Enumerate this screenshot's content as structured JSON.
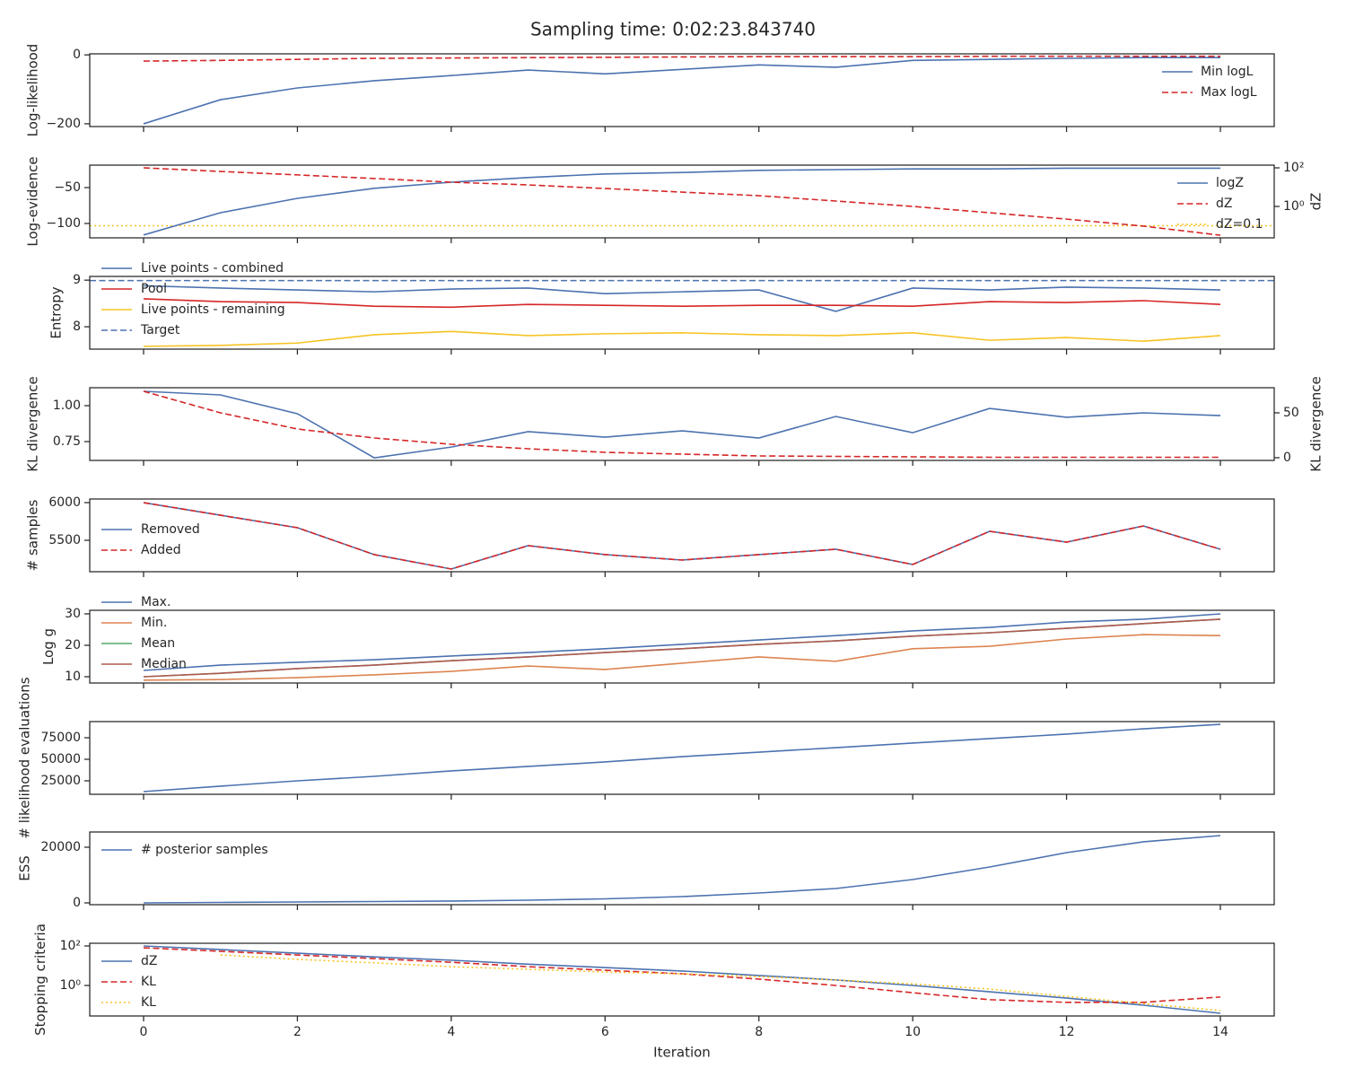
{
  "title": "Sampling time: 0:02:23.843740",
  "chart_data": [
    {
      "type": "line",
      "ylabel": "Log-likelihood",
      "x": [
        0,
        1,
        2,
        3,
        4,
        5,
        6,
        7,
        8,
        9,
        10,
        11,
        12,
        13,
        14
      ],
      "ylim": [
        -208,
        3
      ],
      "yticks": [
        {
          "value": -200,
          "label": "−200"
        },
        0
      ],
      "legend": "upper right",
      "series": [
        {
          "name": "Min logL",
          "color": "#4c72b0",
          "dash": "solid",
          "values": [
            -200,
            -130,
            -96,
            -75,
            -60,
            -44,
            -55,
            -42,
            -29,
            -36,
            -16,
            -13,
            -10,
            -8,
            -8
          ]
        },
        {
          "name": "Max logL",
          "color": "#d62728",
          "dash": "dashed",
          "values": [
            -18,
            -16,
            -13,
            -10,
            -9,
            -8,
            -7,
            -6,
            -5,
            -5,
            -5,
            -4,
            -4,
            -4,
            -4
          ]
        }
      ]
    },
    {
      "type": "line",
      "ylabel": "Log-evidence",
      "x": [
        0,
        1,
        2,
        3,
        4,
        5,
        6,
        7,
        8,
        9,
        10,
        11,
        12,
        13,
        14
      ],
      "ylim": [
        -120,
        -18.75
      ],
      "yticks": [
        {
          "value": -100,
          "label": "−100"
        },
        {
          "value": -50,
          "label": "−50"
        }
      ],
      "y2label": "dZ",
      "y2log": true,
      "y2lim": [
        0.0235,
        138
      ],
      "y2ticks": [
        {
          "value": 1,
          "label": "10⁰"
        },
        {
          "value": 100,
          "label": "10²"
        }
      ],
      "legend": "upper right",
      "series": [
        {
          "name": "logZ",
          "color": "#4c72b0",
          "dash": "solid",
          "values": [
            -116,
            -85,
            -65,
            -51,
            -42.5,
            -36,
            -31,
            -29,
            -26,
            -25,
            -24,
            -24,
            -23,
            -23,
            -23
          ]
        },
        {
          "name": "dZ",
          "color": "#d62728",
          "dash": "dashed",
          "axis": "y2",
          "values": [
            100,
            65,
            43,
            28,
            18,
            13,
            8.5,
            5.5,
            3.6,
            1.9,
            1,
            0.47,
            0.22,
            0.095,
            0.032
          ]
        }
      ],
      "hlines": [
        {
          "name": "dZ=0.1",
          "value": 0.1,
          "axis": "y2",
          "color": "#f7c325",
          "dash": "dotted"
        }
      ]
    },
    {
      "type": "line",
      "ylabel": "Entropy",
      "x": [
        0,
        1,
        2,
        3,
        4,
        5,
        6,
        7,
        8,
        9,
        10,
        11,
        12,
        13,
        14
      ],
      "ylim": [
        7.52,
        9.08
      ],
      "yticks": [
        8,
        9
      ],
      "legend": "upper left",
      "series": [
        {
          "name": "Live points - combined",
          "color": "#4c72b0",
          "dash": "solid",
          "values": [
            8.88,
            8.83,
            8.79,
            8.75,
            8.81,
            8.83,
            8.71,
            8.75,
            8.79,
            8.33,
            8.83,
            8.79,
            8.85,
            8.83,
            8.79
          ]
        },
        {
          "name": "Pool",
          "color": "#d62728",
          "dash": "solid",
          "values": [
            8.6,
            8.54,
            8.52,
            8.44,
            8.42,
            8.48,
            8.46,
            8.44,
            8.46,
            8.46,
            8.44,
            8.54,
            8.52,
            8.56,
            8.48
          ]
        },
        {
          "name": "Live points - remaining",
          "color": "#f7c325",
          "dash": "solid",
          "values": [
            7.58,
            7.6,
            7.65,
            7.83,
            7.9,
            7.81,
            7.85,
            7.87,
            7.83,
            7.81,
            7.87,
            7.71,
            7.77,
            7.69,
            7.81
          ]
        }
      ],
      "hlines": [
        {
          "name": "Target",
          "value": 8.99,
          "color": "#4c72b0",
          "dash": "dashed"
        }
      ]
    },
    {
      "type": "line",
      "ylabel": "KL divergence",
      "x": [
        0,
        1,
        2,
        3,
        4,
        5,
        6,
        7,
        8,
        9,
        10,
        11,
        12,
        13,
        14
      ],
      "ylim": [
        0.619,
        1.125
      ],
      "yticks": [
        {
          "value": 0.75,
          "label": "0.75"
        },
        {
          "value": 1,
          "label": "1.00"
        }
      ],
      "y2label": "KL divergence",
      "y2lim": [
        -3,
        78
      ],
      "y2ticks": [
        0,
        50
      ],
      "series": [
        {
          "color": "#4c72b0",
          "dash": "solid",
          "values": [
            1.1,
            1.075,
            0.944,
            0.637,
            0.712,
            0.819,
            0.781,
            0.825,
            0.775,
            0.925,
            0.812,
            0.981,
            0.919,
            0.95,
            0.931
          ]
        },
        {
          "color": "#d62728",
          "dash": "dashed",
          "axis": "y2",
          "values": [
            74,
            50,
            32,
            22,
            15,
            10,
            6,
            4,
            2,
            1.5,
            1,
            0.5,
            0.5,
            0.5,
            0.5
          ]
        }
      ]
    },
    {
      "type": "line",
      "ylabel": "# samples",
      "x": [
        0,
        1,
        2,
        3,
        4,
        5,
        6,
        7,
        8,
        9,
        10,
        11,
        12,
        13,
        14
      ],
      "ylim": [
        5083,
        6048
      ],
      "yticks": [
        5500,
        6000
      ],
      "legend": "center left",
      "series": [
        {
          "name": "Removed",
          "color": "#4c72b0",
          "dash": "solid",
          "values": [
            6000,
            5833,
            5667,
            5310,
            5119,
            5429,
            5310,
            5238,
            5310,
            5381,
            5179,
            5619,
            5476,
            5690,
            5381
          ]
        },
        {
          "name": "Added",
          "color": "#d62728",
          "dash": "dashed",
          "values": [
            6000,
            5833,
            5667,
            5310,
            5119,
            5429,
            5310,
            5238,
            5310,
            5381,
            5179,
            5619,
            5476,
            5690,
            5381
          ]
        }
      ]
    },
    {
      "type": "line",
      "ylabel": "Log g",
      "x": [
        0,
        1,
        2,
        3,
        4,
        5,
        6,
        7,
        8,
        9,
        10,
        11,
        12,
        13,
        14
      ],
      "ylim": [
        8,
        31.14
      ],
      "yticks": [
        10,
        20,
        30
      ],
      "legend": "upper left",
      "series": [
        {
          "name": "Max.",
          "color": "#4c72b0",
          "dash": "solid",
          "values": [
            12,
            13.7,
            14.6,
            15.4,
            16.6,
            17.7,
            18.9,
            20.3,
            21.7,
            23.1,
            24.6,
            25.7,
            27.4,
            28.3,
            30
          ]
        },
        {
          "name": "Min.",
          "color": "#dd8452",
          "dash": "solid",
          "values": [
            8.9,
            9.1,
            9.7,
            10.6,
            11.7,
            13.4,
            12.3,
            14.3,
            16.3,
            14.9,
            18.9,
            19.7,
            22,
            23.4,
            23.1
          ]
        },
        {
          "name": "Mean",
          "color": "#55a868",
          "dash": "solid",
          "values": [
            10,
            11.1,
            12.6,
            13.7,
            15.1,
            16.3,
            17.7,
            18.9,
            20.3,
            21.4,
            22.9,
            24,
            25.4,
            26.9,
            28.3
          ]
        },
        {
          "name": "Median",
          "color": "#b05a52",
          "dash": "solid",
          "values": [
            10,
            11.1,
            12.6,
            13.7,
            15.1,
            16.3,
            17.7,
            18.9,
            20.3,
            21.4,
            22.9,
            24,
            25.4,
            26.9,
            28.3
          ]
        }
      ]
    },
    {
      "type": "line",
      "ylabel": "# likelihood evaluations",
      "x": [
        0,
        1,
        2,
        3,
        4,
        5,
        6,
        7,
        8,
        9,
        10,
        11,
        12,
        13,
        14
      ],
      "ylim": [
        9375,
        93750
      ],
      "yticks": [
        25000,
        50000,
        75000
      ],
      "series": [
        {
          "color": "#4c72b0",
          "dash": "solid",
          "values": [
            12500,
            18800,
            25000,
            30200,
            36500,
            41700,
            46900,
            53100,
            58300,
            63500,
            68800,
            74000,
            79200,
            85400,
            90600
          ]
        }
      ]
    },
    {
      "type": "line",
      "ylabel": "ESS",
      "x": [
        0,
        1,
        2,
        3,
        4,
        5,
        6,
        7,
        8,
        9,
        10,
        11,
        12,
        13,
        14
      ],
      "ylim": [
        -645,
        25480
      ],
      "yticks": [
        0,
        20000
      ],
      "legend": "upper left",
      "series": [
        {
          "name": "# posterior samples",
          "color": "#4c72b0",
          "dash": "solid",
          "values": [
            0,
            160,
            320,
            480,
            650,
            970,
            1450,
            2260,
            3550,
            5160,
            8390,
            12900,
            18060,
            21940,
            24190
          ]
        }
      ]
    },
    {
      "type": "line",
      "ylabel": "Stopping criteria",
      "xlabel": "Iteration",
      "x": [
        0,
        1,
        2,
        3,
        4,
        5,
        6,
        7,
        8,
        9,
        10,
        11,
        12,
        13,
        14
      ],
      "xlim": [
        -0.7,
        14.7
      ],
      "xticks": [
        0,
        2,
        4,
        6,
        8,
        10,
        12,
        14
      ],
      "ylog": true,
      "ylim": [
        0.0285,
        137
      ],
      "yticks": [
        {
          "value": 1,
          "label": "10⁰"
        },
        {
          "value": 100,
          "label": "10²"
        }
      ],
      "legend": "upper left",
      "series": [
        {
          "name": "dZ",
          "color": "#4c72b0",
          "dash": "solid",
          "values": [
            100,
            66,
            43,
            28,
            19,
            12,
            8.1,
            5.4,
            3.2,
            1.9,
            1,
            0.48,
            0.23,
            0.1,
            0.039
          ]
        },
        {
          "name": "KL",
          "color": "#d62728",
          "dash": "dashed",
          "values": [
            81,
            54,
            35,
            23,
            15,
            8.9,
            5.9,
            3.9,
            2.1,
            1,
            0.43,
            0.19,
            0.14,
            0.14,
            0.26
          ]
        },
        {
          "name": "KL",
          "color": "#f7c325",
          "dash": "dotted",
          "values": [
            null,
            35,
            21,
            14,
            8.9,
            6.6,
            4.8,
            3.9,
            2.8,
            1.9,
            1.2,
            0.66,
            0.28,
            0.12,
            0.054
          ]
        }
      ]
    }
  ]
}
